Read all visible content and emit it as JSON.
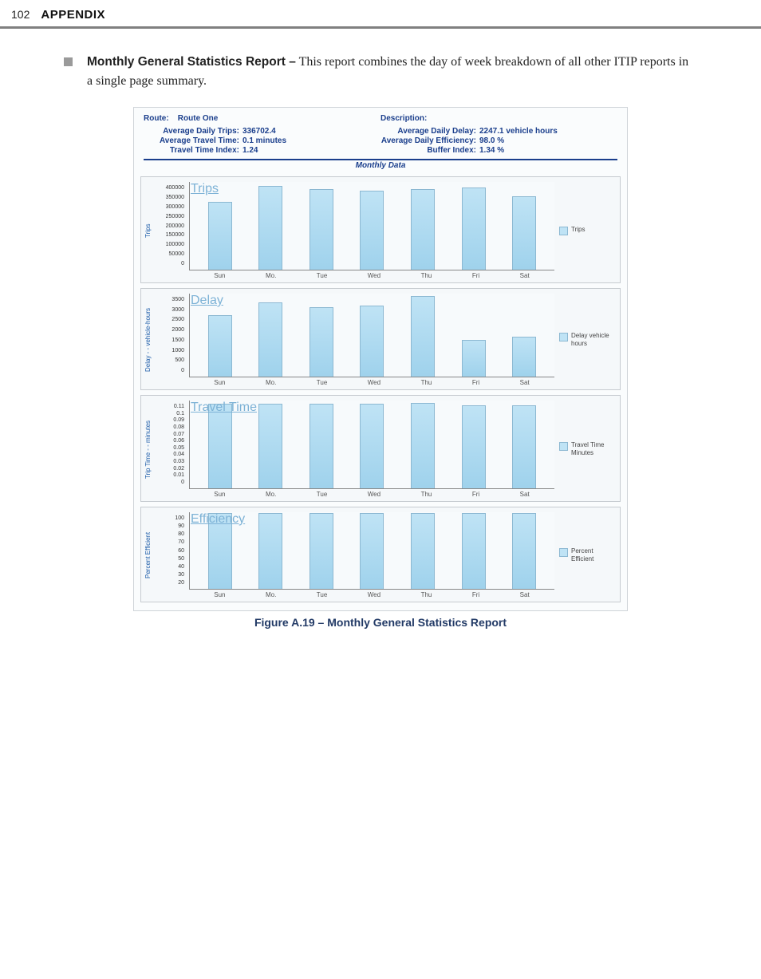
{
  "header": {
    "page_number": "102",
    "section": "APPENDIX"
  },
  "bullet": {
    "title": "Monthly General Statistics Report –",
    "body": "This report combines the day of week breakdown of all other ITIP reports in a single page summary."
  },
  "figure_caption": "Figure A.19 – Monthly General Statistics Report",
  "report": {
    "route_label": "Route:",
    "route_value": "Route One",
    "description_label": "Description:",
    "stats_left": [
      {
        "label": "Average Daily Trips:",
        "value": "336702.4"
      },
      {
        "label": "Average Travel Time:",
        "value": "0.1 minutes"
      },
      {
        "label": "Travel Time Index:",
        "value": "1.24"
      }
    ],
    "stats_right": [
      {
        "label": "Average Daily Delay:",
        "value": "2247.1 vehicle hours"
      },
      {
        "label": "Average Daily Efficiency:",
        "value": "98.0 %"
      },
      {
        "label": "Buffer Index:",
        "value": "1.34 %"
      }
    ],
    "monthly_data": "Monthly Data",
    "days": [
      "Sun",
      "Mo.",
      "Tue",
      "Wed",
      "Thu",
      "Fri",
      "Sat"
    ],
    "bar_color": "#bfe3f5",
    "bar_border": "#8cb8d2",
    "panel_bg": "#f5f8fa",
    "charts": [
      {
        "title": "Trips",
        "y_label": "Trips",
        "legend": "Trips",
        "y_ticks": [
          "400000",
          "350000",
          "300000",
          "250000",
          "200000",
          "150000",
          "100000",
          "50000",
          "0"
        ],
        "ymax": 400000,
        "values": [
          305000,
          380000,
          365000,
          355000,
          365000,
          372000,
          330000
        ],
        "height": 110
      },
      {
        "title": "Delay",
        "y_label": "Delay  - - vehicle-hours",
        "legend": "Delay vehicle hours",
        "y_ticks": [
          "3500",
          "3000",
          "2500",
          "2000",
          "1500",
          "1000",
          "500",
          "0"
        ],
        "ymax": 3500,
        "values": [
          2550,
          3100,
          2900,
          2950,
          3350,
          1500,
          1650
        ],
        "height": 104
      },
      {
        "title": "Travel Time",
        "y_label": "Trip Time  - -  minutes",
        "legend": "Travel Time Minutes",
        "y_ticks": [
          "0.11",
          "0.1",
          "0.09",
          "0.08",
          "0.07",
          "0.06",
          "0.05",
          "0.04",
          "0.03",
          "0.02",
          "0.01",
          "0"
        ],
        "ymax": 0.11,
        "values": [
          0.105,
          0.105,
          0.105,
          0.105,
          0.106,
          0.103,
          0.103
        ],
        "height": 110
      },
      {
        "title": "Efficiency",
        "y_label": "Percent Efficient",
        "legend": "Percent Efficient",
        "y_ticks": [
          "100",
          "90",
          "80",
          "70",
          "60",
          "50",
          "40",
          "30",
          "20"
        ],
        "ymax": 100,
        "values": [
          98,
          98,
          98,
          98,
          98,
          98,
          98
        ],
        "height": 96
      }
    ]
  }
}
